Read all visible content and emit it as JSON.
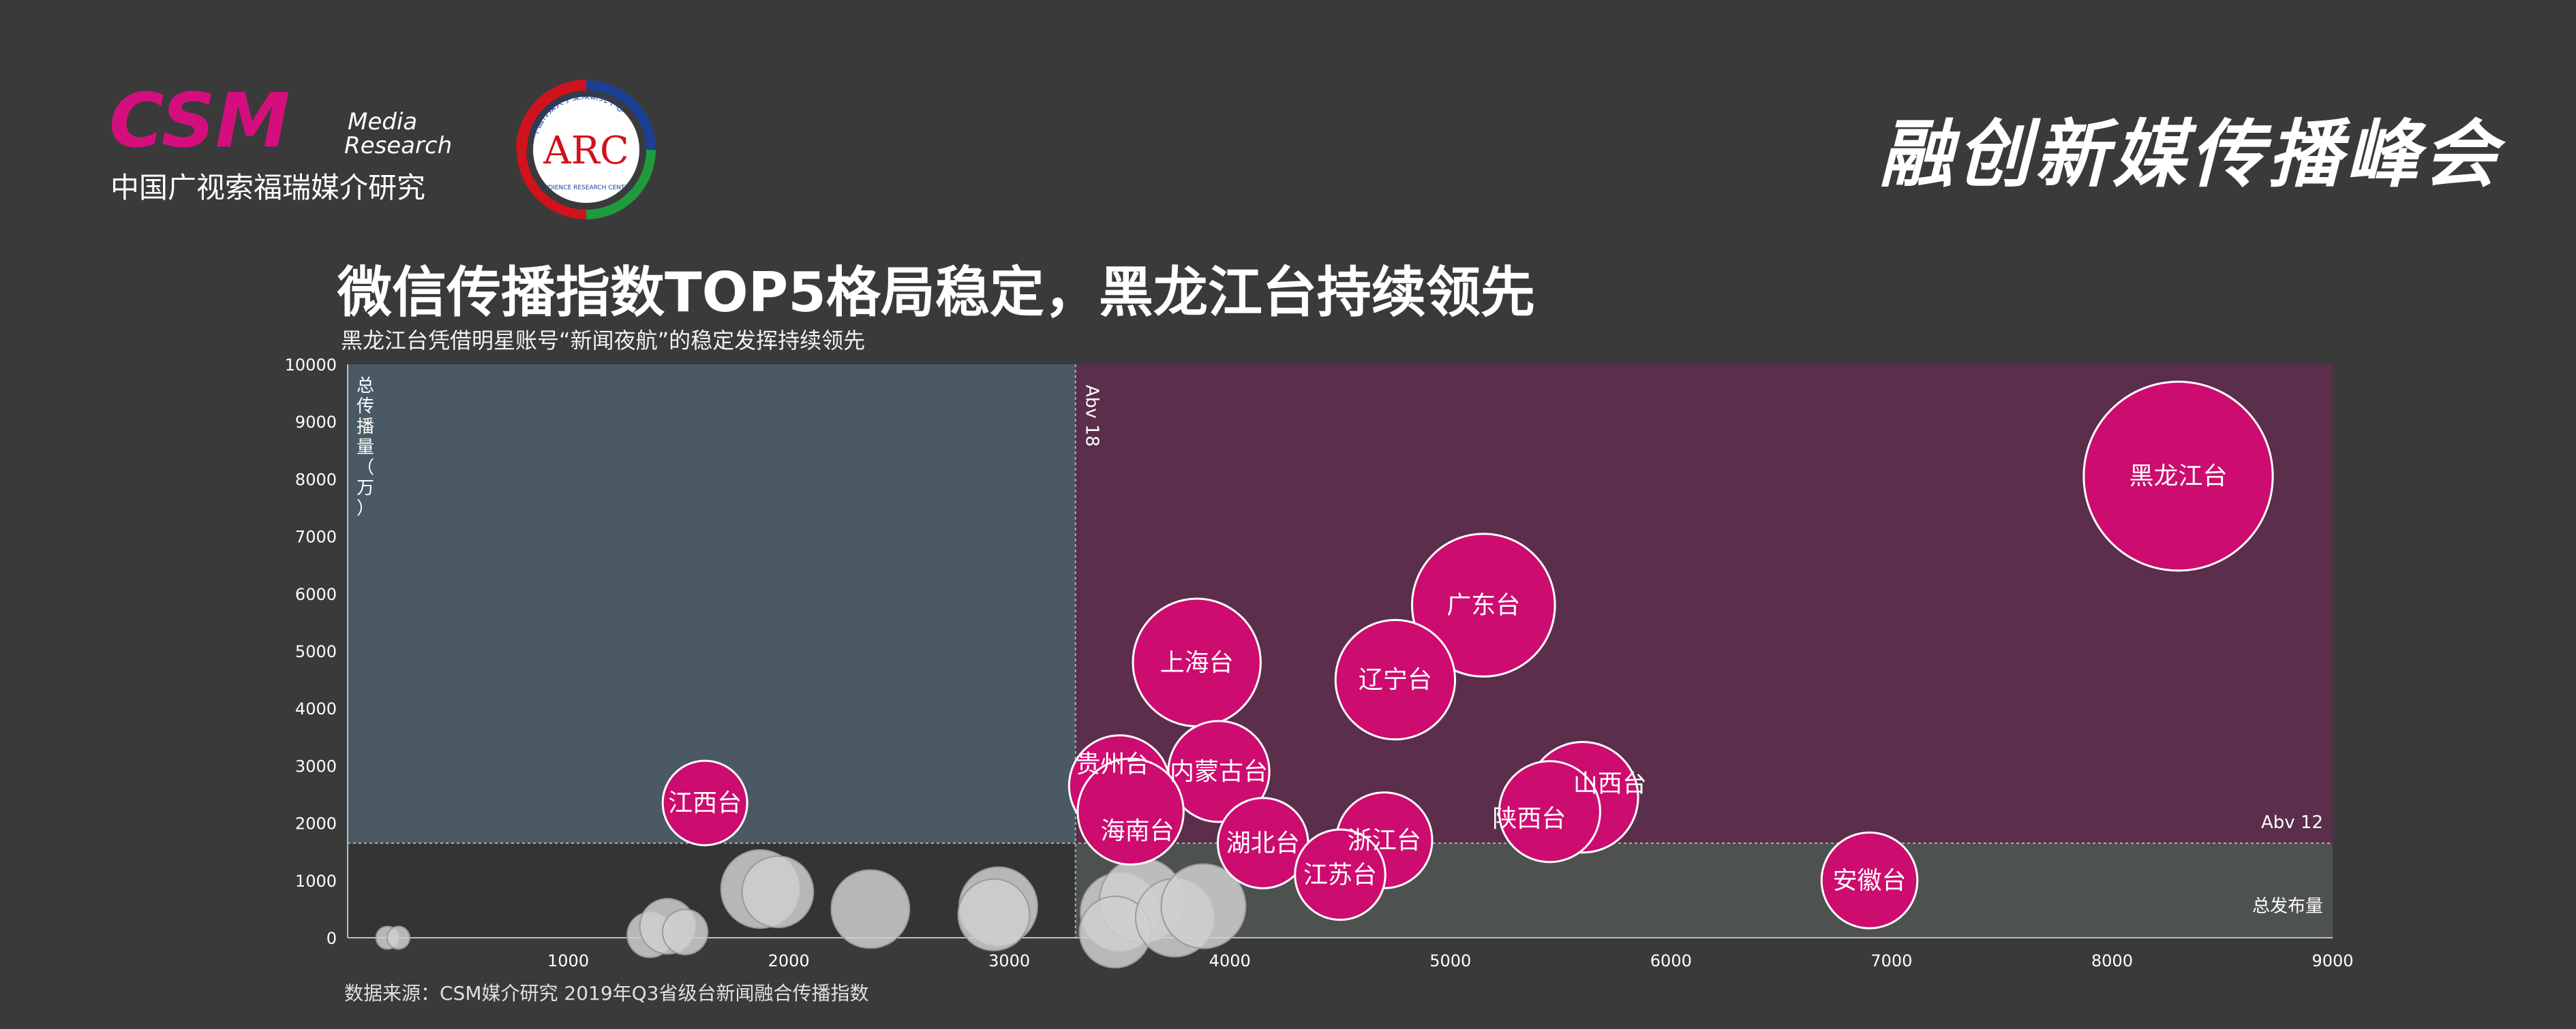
{
  "header": {
    "csm_logo": {
      "wordmark": "CSM",
      "line1": "Media",
      "line2": "Research",
      "chinese_name": "中国广视索福瑞媒介研究"
    },
    "arc_logo": {
      "text": "ARC",
      "ring_text_top": "中国传媒大学受众研究中心",
      "ring_text_bottom": "AUDIENCE RESEARCH CENTER"
    },
    "summit_title": "融创新媒传播峰会"
  },
  "headline": "微信传播指数TOP5格局稳定，黑龙江台持续领先",
  "subheadline": "黑龙江台凭借明星账号“新闻夜航”的稳定发挥持续领先",
  "source_note": "数据来源：CSM媒介研究  2019年Q3省级台新闻融合传播指数",
  "chart_data": {
    "type": "bubble",
    "xlim": [
      0,
      9000
    ],
    "ylim": [
      0,
      10000
    ],
    "x_ticks": [
      "1000",
      "2000",
      "3000",
      "4000",
      "5000",
      "6000",
      "7000",
      "8000",
      "9000"
    ],
    "y_ticks": [
      "0",
      "1000",
      "2000",
      "3000",
      "4000",
      "5000",
      "6000",
      "7000",
      "8000",
      "9000",
      "10000"
    ],
    "ylabel": "总传播量（万）",
    "quadrant_split": {
      "x": 3300,
      "y": 1650
    },
    "quadrant_labels": {
      "top_right_vertical": "Abv 18",
      "right_horizontal": "Abv 12",
      "bottom_right": "总发布量"
    },
    "colors": {
      "highlight": "#cc0c6f",
      "gray_bubble": "#cfcfcf",
      "q_top_left": "#4a5963",
      "q_top_right": "#5b2e4b",
      "q_bottom_left": "#343434",
      "q_bottom_right": "#4e524f"
    },
    "labeled_points": [
      {
        "name": "黑龙江台",
        "x": 8300,
        "y": 8050,
        "size": 3.5
      },
      {
        "name": "广东台",
        "x": 5150,
        "y": 5800,
        "size": 2.0
      },
      {
        "name": "上海台",
        "x": 3850,
        "y": 4800,
        "size": 1.6
      },
      {
        "name": "辽宁台",
        "x": 4750,
        "y": 4500,
        "size": 1.4
      },
      {
        "name": "内蒙古台",
        "x": 3950,
        "y": 2900,
        "size": 1.0
      },
      {
        "name": "贵州台",
        "x": 3500,
        "y": 2650,
        "size": 1.0
      },
      {
        "name": "海南台",
        "x": 3550,
        "y": 2200,
        "size": 1.1
      },
      {
        "name": "山西台",
        "x": 5600,
        "y": 2450,
        "size": 1.2
      },
      {
        "name": "陕西台",
        "x": 5450,
        "y": 2200,
        "size": 1.0
      },
      {
        "name": "湖北台",
        "x": 4150,
        "y": 1650,
        "size": 0.8
      },
      {
        "name": "浙江台",
        "x": 4700,
        "y": 1700,
        "size": 0.9
      },
      {
        "name": "江苏台",
        "x": 4500,
        "y": 1100,
        "size": 0.8
      },
      {
        "name": "江西台",
        "x": 1620,
        "y": 2350,
        "size": 0.7
      },
      {
        "name": "安徽台",
        "x": 6900,
        "y": 1000,
        "size": 0.9
      }
    ],
    "unlabeled_points": [
      {
        "x": 180,
        "y": 0,
        "size": 0.05
      },
      {
        "x": 230,
        "y": 0,
        "size": 0.05
      },
      {
        "x": 1370,
        "y": 50,
        "size": 0.2
      },
      {
        "x": 1450,
        "y": 200,
        "size": 0.3
      },
      {
        "x": 1530,
        "y": 100,
        "size": 0.2
      },
      {
        "x": 1870,
        "y": 850,
        "size": 0.6
      },
      {
        "x": 1950,
        "y": 800,
        "size": 0.5
      },
      {
        "x": 2370,
        "y": 500,
        "size": 0.6
      },
      {
        "x": 2950,
        "y": 550,
        "size": 0.6
      },
      {
        "x": 2930,
        "y": 400,
        "size": 0.5
      },
      {
        "x": 3500,
        "y": 450,
        "size": 0.6
      },
      {
        "x": 3600,
        "y": 650,
        "size": 0.7
      },
      {
        "x": 3480,
        "y": 100,
        "size": 0.5
      },
      {
        "x": 3750,
        "y": 350,
        "size": 0.6
      },
      {
        "x": 3880,
        "y": 550,
        "size": 0.7
      }
    ]
  }
}
